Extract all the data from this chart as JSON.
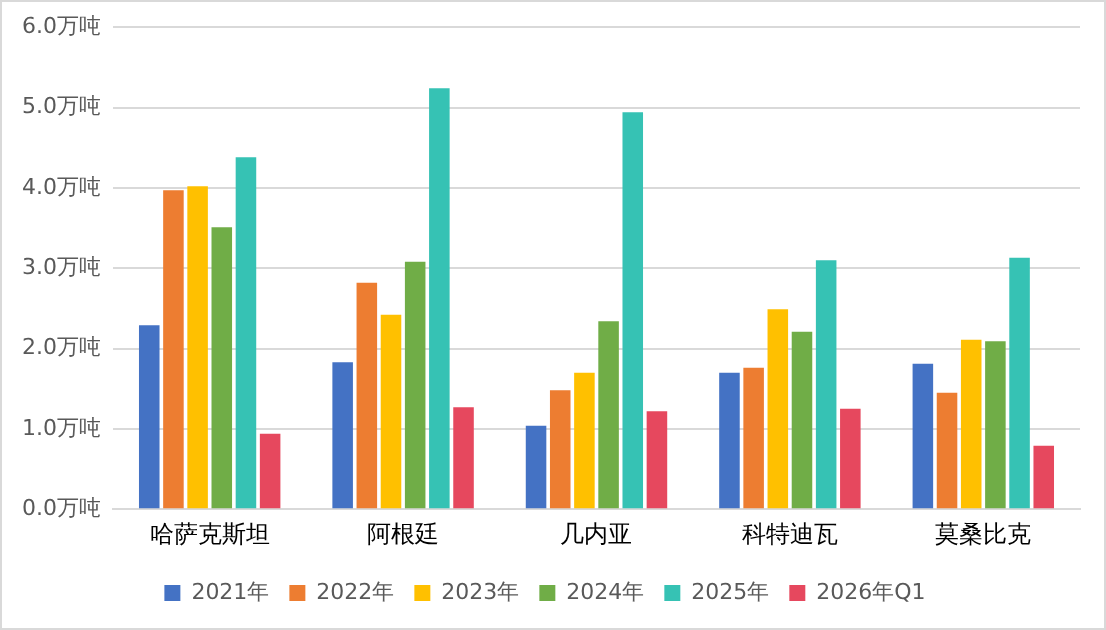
{
  "chart_data": {
    "type": "bar",
    "categories": [
      "哈萨克斯坦",
      "阿根廷",
      "几内亚",
      "科特迪瓦",
      "莫桑比克"
    ],
    "series": [
      {
        "name": "2021年",
        "color": "#4472c4",
        "values": [
          2.29,
          1.83,
          1.04,
          1.7,
          1.81
        ]
      },
      {
        "name": "2022年",
        "color": "#ed7d31",
        "values": [
          3.97,
          2.82,
          1.48,
          1.76,
          1.45
        ]
      },
      {
        "name": "2023年",
        "color": "#ffc000",
        "values": [
          4.02,
          2.42,
          1.7,
          2.49,
          2.11
        ]
      },
      {
        "name": "2024年",
        "color": "#70ad47",
        "values": [
          3.51,
          3.08,
          2.34,
          2.21,
          2.09
        ]
      },
      {
        "name": "2025年",
        "color": "#36c2b4",
        "values": [
          4.38,
          5.24,
          4.94,
          3.1,
          3.13
        ]
      },
      {
        "name": "2026年Q1",
        "color": "#e6485e",
        "values": [
          0.94,
          1.27,
          1.22,
          1.25,
          0.79
        ]
      }
    ],
    "ylim": [
      0,
      6
    ],
    "yticks": [
      {
        "value": 0,
        "label": "0.0万吨"
      },
      {
        "value": 1,
        "label": "1.0万吨"
      },
      {
        "value": 2,
        "label": "2.0万吨"
      },
      {
        "value": 3,
        "label": "3.0万吨"
      },
      {
        "value": 4,
        "label": "4.0万吨"
      },
      {
        "value": 5,
        "label": "5.0万吨"
      },
      {
        "value": 6,
        "label": "6.0万吨"
      }
    ],
    "grid": "y",
    "legend": "bottom"
  }
}
